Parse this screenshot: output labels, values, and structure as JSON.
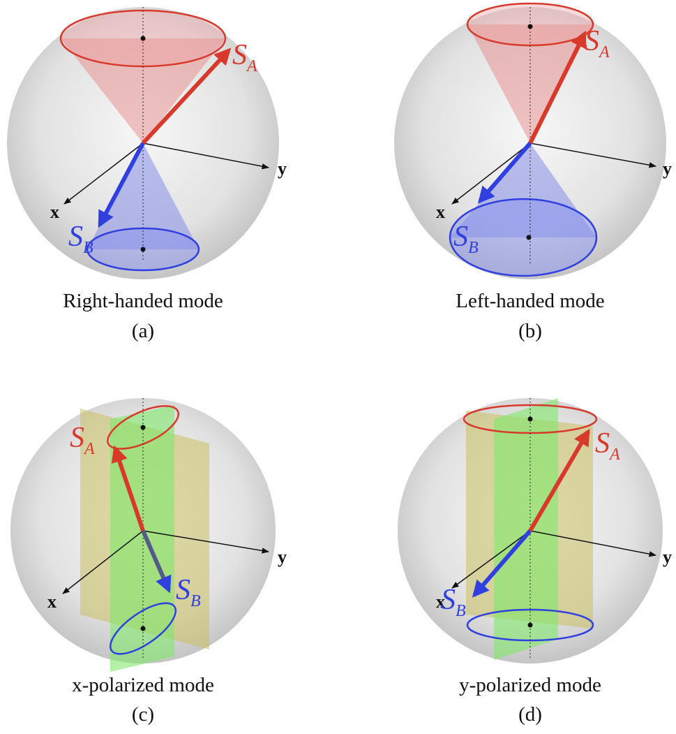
{
  "axis_labels": {
    "x": "x",
    "y": "y"
  },
  "spin_a": {
    "symbol": "S",
    "subscript": "A"
  },
  "spin_b": {
    "symbol": "S",
    "subscript": "B"
  },
  "panels": [
    {
      "caption": "Right-handed mode",
      "label": "(a)"
    },
    {
      "caption": "Left-handed mode",
      "label": "(b)"
    },
    {
      "caption": "x-polarized mode",
      "label": "(c)"
    },
    {
      "caption": "y-polarized mode",
      "label": "(d)"
    }
  ]
}
